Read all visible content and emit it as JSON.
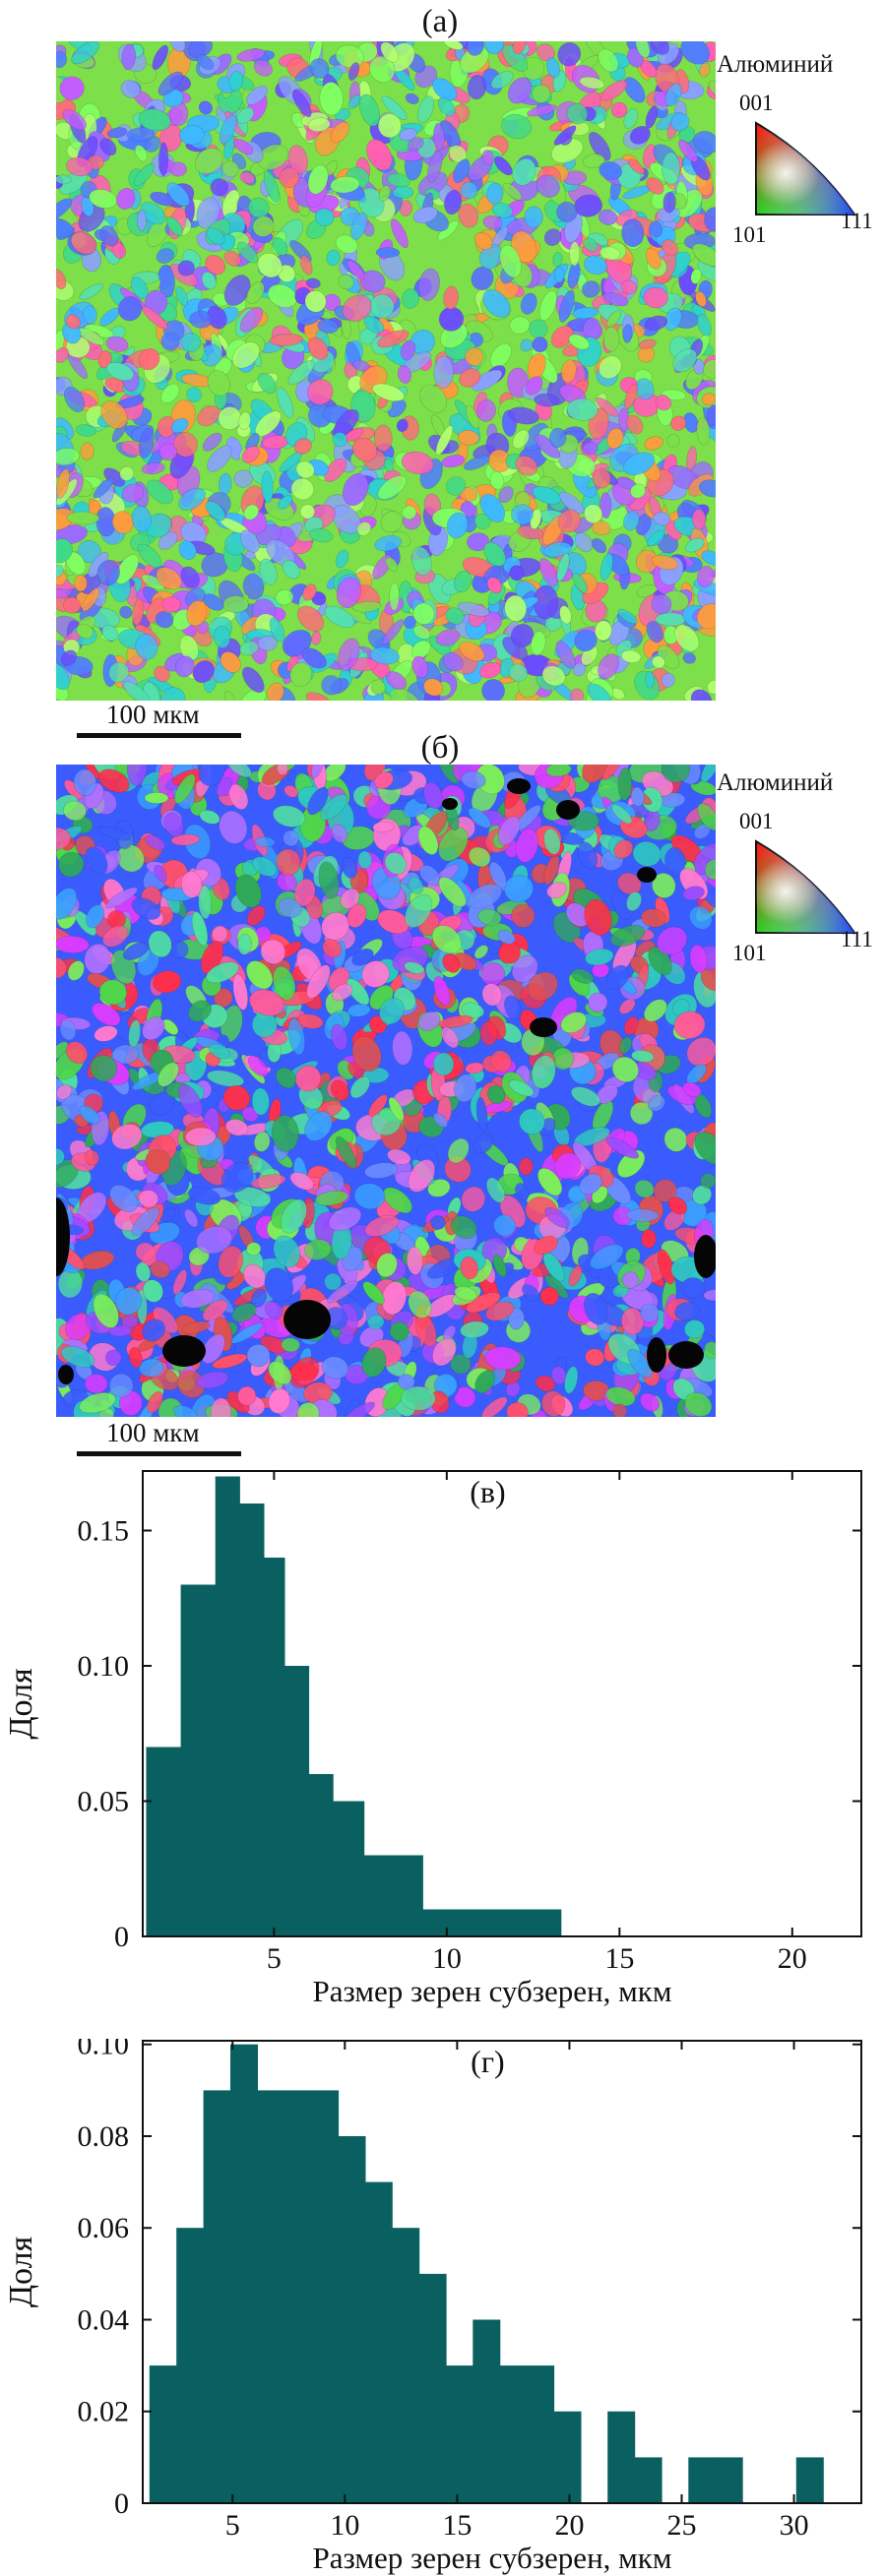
{
  "panels": [
    {
      "id": "a",
      "label": "(а)",
      "scale_text": "100 мкм",
      "legend": {
        "title": "Алюминий",
        "tick_001": "001",
        "tick_101": "101",
        "tick_111": "111"
      }
    },
    {
      "id": "b",
      "label": "(б)",
      "scale_text": "100 мкм",
      "legend": {
        "title": "Алюминий",
        "tick_001": "001",
        "tick_101": "101",
        "tick_111": "111"
      }
    }
  ],
  "colors": {
    "bar": "#0a6060",
    "axis": "#111111"
  },
  "chart_data": [
    {
      "type": "bar",
      "panel_label": "(в)",
      "xlabel": "Размер зерен субзерен, мкм",
      "ylabel": "Доля",
      "xlim": [
        1.2,
        22
      ],
      "ylim": [
        0,
        0.172
      ],
      "xticks": [
        5,
        10,
        15,
        20
      ],
      "yticks": [
        0,
        0.05,
        0.1,
        0.15
      ],
      "ytick_labels": [
        "0",
        "0.05",
        "0.10",
        "0.15"
      ],
      "bin_edges": [
        1.3,
        2.3,
        3.3,
        4.0,
        4.7,
        5.3,
        6.0,
        6.7,
        7.6,
        9.3,
        10.5,
        13.3
      ],
      "values": [
        0.07,
        0.13,
        0.17,
        0.16,
        0.14,
        0.1,
        0.06,
        0.05,
        0.03,
        0.01,
        0.01
      ]
    },
    {
      "type": "bar",
      "panel_label": "(г)",
      "xlabel": "Размер зерен субзерен, мкм",
      "ylabel": "Доля",
      "xlim": [
        1.0,
        33
      ],
      "ylim": [
        0,
        0.1008
      ],
      "xticks": [
        5,
        10,
        15,
        20,
        25,
        30
      ],
      "yticks": [
        0,
        0.02,
        0.04,
        0.06,
        0.08,
        0.1
      ],
      "ytick_labels": [
        "0",
        "0.02",
        "0.04",
        "0.06",
        "0.08",
        "0.10"
      ],
      "bin_edges": [
        1.3,
        2.5,
        3.7,
        4.9,
        6.1,
        7.3,
        8.5,
        9.7,
        10.9,
        12.1,
        13.3,
        14.5,
        15.7,
        16.9,
        18.1,
        19.3,
        20.5,
        21.7,
        22.9,
        24.1,
        25.3,
        26.5,
        27.7,
        28.9,
        30.1,
        31.3,
        32.5
      ],
      "values": [
        0.03,
        0.06,
        0.09,
        0.1,
        0.09,
        0.09,
        0.09,
        0.08,
        0.07,
        0.06,
        0.05,
        0.03,
        0.04,
        0.03,
        0.03,
        0.02,
        0,
        0.02,
        0.01,
        0,
        0.01,
        0.01,
        0,
        0,
        0.01,
        0
      ]
    }
  ]
}
